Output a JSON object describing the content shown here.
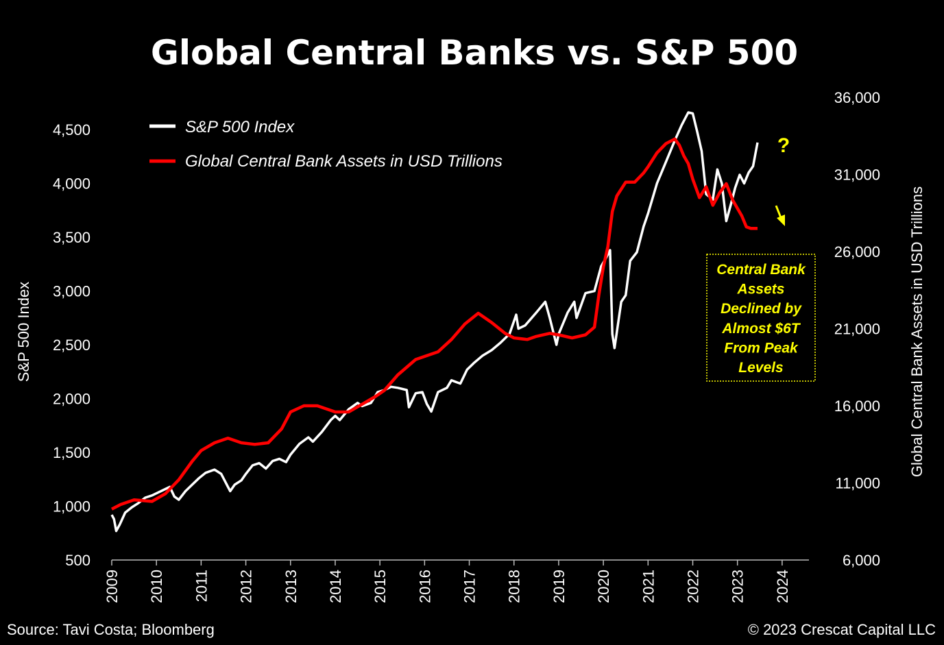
{
  "title": "Global Central Banks vs. S&P 500",
  "footer": {
    "source": "Source: Tavi Costa; Bloomberg",
    "copyright": "© 2023 Crescat Capital LLC"
  },
  "colors": {
    "sp500": "#ffffff",
    "cb_assets": "#ff0000",
    "annotation": "#ffff00",
    "background": "#000000"
  },
  "chart_data": {
    "type": "line",
    "title": "Global Central Banks vs. S&P 500",
    "xlabel": "",
    "ylabel_left": "S&P 500 Index",
    "ylabel_right": "Global Central Bank Assets in USD Trillions",
    "xlim": [
      2009,
      2024.6
    ],
    "ylim_left": [
      500,
      4800
    ],
    "ylim_right": [
      6000,
      36000
    ],
    "x_ticks": [
      "2009",
      "2010",
      "2011",
      "2012",
      "2013",
      "2014",
      "2015",
      "2016",
      "2017",
      "2018",
      "2019",
      "2020",
      "2021",
      "2022",
      "2023",
      "2024"
    ],
    "y_ticks_left": [
      "500",
      "1,000",
      "1,500",
      "2,000",
      "2,500",
      "3,000",
      "3,500",
      "4,000",
      "4,500"
    ],
    "y_ticks_right": [
      "6,000",
      "11,000",
      "16,000",
      "21,000",
      "26,000",
      "31,000",
      "36,000"
    ],
    "legend": [
      "S&P 500 Index",
      "Global Central Bank Assets in USD Trillions"
    ],
    "series": [
      {
        "name": "S&P 500 Index",
        "axis": "left",
        "color": "#ffffff",
        "x": [
          2009.0,
          2009.05,
          2009.1,
          2009.18,
          2009.3,
          2009.45,
          2009.6,
          2009.75,
          2009.9,
          2010.0,
          2010.15,
          2010.3,
          2010.4,
          2010.5,
          2010.65,
          2010.8,
          2010.95,
          2011.1,
          2011.3,
          2011.45,
          2011.6,
          2011.65,
          2011.75,
          2011.9,
          2012.0,
          2012.15,
          2012.3,
          2012.45,
          2012.6,
          2012.75,
          2012.9,
          2013.0,
          2013.2,
          2013.4,
          2013.5,
          2013.7,
          2013.9,
          2014.0,
          2014.1,
          2014.3,
          2014.5,
          2014.6,
          2014.8,
          2014.95,
          2015.1,
          2015.25,
          2015.4,
          2015.6,
          2015.65,
          2015.8,
          2015.95,
          2016.05,
          2016.15,
          2016.3,
          2016.5,
          2016.6,
          2016.8,
          2016.95,
          2017.1,
          2017.3,
          2017.5,
          2017.7,
          2017.9,
          2018.05,
          2018.1,
          2018.25,
          2018.5,
          2018.7,
          2018.8,
          2018.95,
          2019.0,
          2019.2,
          2019.35,
          2019.4,
          2019.6,
          2019.8,
          2019.95,
          2020.05,
          2020.15,
          2020.2,
          2020.25,
          2020.4,
          2020.5,
          2020.6,
          2020.75,
          2020.9,
          2021.0,
          2021.2,
          2021.4,
          2021.6,
          2021.75,
          2021.9,
          2022.0,
          2022.1,
          2022.2,
          2022.3,
          2022.45,
          2022.55,
          2022.65,
          2022.75,
          2022.85,
          2022.95,
          2023.05,
          2023.15,
          2023.25,
          2023.35,
          2023.45
        ],
        "values": [
          920,
          880,
          770,
          830,
          940,
          990,
          1030,
          1080,
          1100,
          1120,
          1150,
          1180,
          1090,
          1060,
          1140,
          1200,
          1260,
          1310,
          1340,
          1300,
          1180,
          1140,
          1200,
          1240,
          1300,
          1380,
          1400,
          1350,
          1420,
          1440,
          1410,
          1480,
          1580,
          1640,
          1600,
          1690,
          1800,
          1840,
          1800,
          1900,
          1960,
          1930,
          1960,
          2060,
          2080,
          2110,
          2100,
          2080,
          1920,
          2050,
          2060,
          1950,
          1880,
          2060,
          2100,
          2170,
          2140,
          2270,
          2330,
          2400,
          2450,
          2520,
          2600,
          2780,
          2650,
          2680,
          2800,
          2900,
          2750,
          2500,
          2600,
          2800,
          2900,
          2750,
          2980,
          3000,
          3230,
          3300,
          3380,
          2600,
          2470,
          2900,
          2960,
          3280,
          3360,
          3600,
          3720,
          4000,
          4200,
          4400,
          4540,
          4660,
          4650,
          4480,
          4300,
          3900,
          3850,
          4130,
          4000,
          3650,
          3800,
          3960,
          4080,
          4000,
          4100,
          4160,
          4380
        ]
      },
      {
        "name": "Global Central Bank Assets in USD Trillions",
        "axis": "right",
        "color": "#ff0000",
        "x": [
          2009.0,
          2009.2,
          2009.5,
          2009.9,
          2010.2,
          2010.5,
          2010.8,
          2011.0,
          2011.3,
          2011.6,
          2011.9,
          2012.2,
          2012.5,
          2012.8,
          2013.0,
          2013.3,
          2013.6,
          2014.0,
          2014.3,
          2014.6,
          2014.9,
          2015.1,
          2015.4,
          2015.8,
          2016.0,
          2016.3,
          2016.6,
          2016.9,
          2017.2,
          2017.5,
          2017.8,
          2018.0,
          2018.3,
          2018.5,
          2018.8,
          2019.0,
          2019.3,
          2019.6,
          2019.8,
          2019.9,
          2020.0,
          2020.1,
          2020.2,
          2020.3,
          2020.5,
          2020.7,
          2020.9,
          2021.0,
          2021.2,
          2021.4,
          2021.6,
          2021.7,
          2021.8,
          2021.9,
          2022.0,
          2022.15,
          2022.3,
          2022.45,
          2022.6,
          2022.75,
          2022.9,
          2023.0,
          2023.1,
          2023.2,
          2023.3,
          2023.4,
          2023.45
        ],
        "values": [
          9300,
          9600,
          9900,
          9800,
          10300,
          11200,
          12400,
          13100,
          13600,
          13900,
          13600,
          13500,
          13600,
          14500,
          15600,
          16000,
          16000,
          15600,
          15600,
          16100,
          16600,
          17000,
          18000,
          19000,
          19200,
          19500,
          20300,
          21300,
          22000,
          21400,
          20700,
          20400,
          20300,
          20500,
          20700,
          20600,
          20400,
          20600,
          21100,
          23200,
          25000,
          26300,
          28600,
          29600,
          30500,
          30500,
          31100,
          31500,
          32400,
          33000,
          33300,
          32900,
          32200,
          31700,
          30700,
          29500,
          30200,
          29000,
          29800,
          30400,
          29300,
          28800,
          28300,
          27600,
          27500,
          27500,
          27500
        ]
      }
    ],
    "annotations": [
      {
        "text": "?",
        "near_series": "S&P 500 Index"
      },
      {
        "text": "Central Bank Assets Declined by Almost $6T From Peak Levels"
      }
    ]
  },
  "annotation": {
    "question_mark": "?",
    "lines": [
      "Central Bank",
      "Assets",
      "Declined by",
      "Almost $6T",
      "From Peak",
      "Levels"
    ]
  }
}
